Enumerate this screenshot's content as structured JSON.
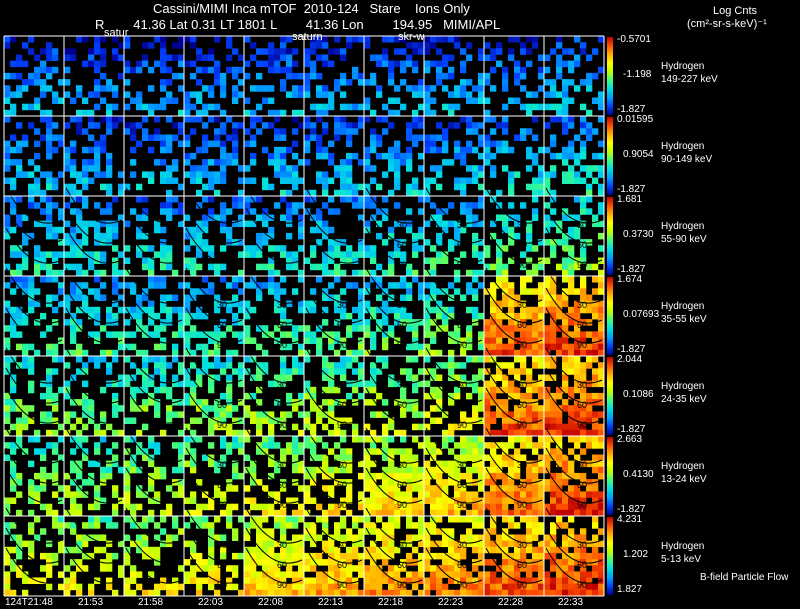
{
  "header": {
    "line1": "Cassini/MIMI Inca mTOF  2010-124   Stare    Ions Only",
    "line2": "R        41.36 Lat 0.31 LT 1801 L        41.36 Lon        194.95   MIMI/APL",
    "log_label": "Log Cnts",
    "units_label": "(cm²-sr-s-keV)⁻¹",
    "overlay_labels": [
      "satur",
      "saturn",
      "skr-w"
    ]
  },
  "footer": {
    "note": "B-field Particle Flow"
  },
  "time_labels": [
    "124T21:48",
    "21:53",
    "21:58",
    "22:03",
    "22:08",
    "22:13",
    "22:18",
    "22:23",
    "22:28",
    "22:33"
  ],
  "colors": {
    "background": "#000000",
    "grid": "#ffffff",
    "colorbar_stops": [
      "#000090",
      "#0040ff",
      "#00a0ff",
      "#00e0e0",
      "#40ff80",
      "#c0ff00",
      "#ffff00",
      "#ffb000",
      "#ff5000",
      "#c00000"
    ]
  },
  "chart_data": {
    "type": "heatmap",
    "title": "Cassini/MIMI Inca mTOF  2010-124   Stare    Ions Only",
    "x": [
      "124T21:48",
      "21:53",
      "21:58",
      "22:03",
      "22:08",
      "22:13",
      "22:18",
      "22:23",
      "22:28",
      "22:33"
    ],
    "rows": [
      {
        "species": "Hydrogen",
        "energy": "149-227 keV",
        "max": "-0.5701",
        "mid": "-1.198",
        "min": "-1.827",
        "intensity": [
          0.18,
          0.16,
          0.17,
          0.16,
          0.18,
          0.17,
          0.17,
          0.2,
          0.2,
          0.22
        ]
      },
      {
        "species": "Hydrogen",
        "energy": "90-149 keV",
        "max": "0.01595",
        "mid": "0.9054",
        "min": "-1.827",
        "intensity": [
          0.22,
          0.2,
          0.2,
          0.2,
          0.21,
          0.21,
          0.22,
          0.23,
          0.26,
          0.28
        ]
      },
      {
        "species": "Hydrogen",
        "energy": "55-90 keV",
        "max": "1.681",
        "mid": "0.3730",
        "min": "-1.827",
        "intensity": [
          0.28,
          0.27,
          0.27,
          0.27,
          0.28,
          0.29,
          0.3,
          0.33,
          0.38,
          0.42
        ]
      },
      {
        "species": "Hydrogen",
        "energy": "35-55 keV",
        "max": "1.674",
        "mid": "0.07693",
        "min": "-1.827",
        "intensity": [
          0.34,
          0.33,
          0.33,
          0.33,
          0.35,
          0.36,
          0.37,
          0.42,
          0.78,
          0.82
        ]
      },
      {
        "species": "Hydrogen",
        "energy": "24-35 keV",
        "max": "2.044",
        "mid": "0.1086",
        "min": "-1.827",
        "intensity": [
          0.42,
          0.42,
          0.43,
          0.44,
          0.46,
          0.48,
          0.5,
          0.56,
          0.8,
          0.84
        ]
      },
      {
        "species": "Hydrogen",
        "energy": "13-24 keV",
        "max": "2.663",
        "mid": "0.4130",
        "min": "-1.827",
        "intensity": [
          0.46,
          0.46,
          0.5,
          0.52,
          0.56,
          0.6,
          0.62,
          0.66,
          0.78,
          0.84
        ]
      },
      {
        "species": "Hydrogen",
        "energy": "5-13 keV",
        "max": "4.231",
        "mid": "1.202",
        "min": "1.827",
        "intensity": [
          0.56,
          0.56,
          0.58,
          0.6,
          0.64,
          0.68,
          0.72,
          0.74,
          0.8,
          0.84
        ]
      }
    ],
    "contour_labels": [
      "30",
      "60",
      "90"
    ],
    "colorbar_label": "Log Cnts (cm²-sr-s-keV)⁻¹"
  }
}
